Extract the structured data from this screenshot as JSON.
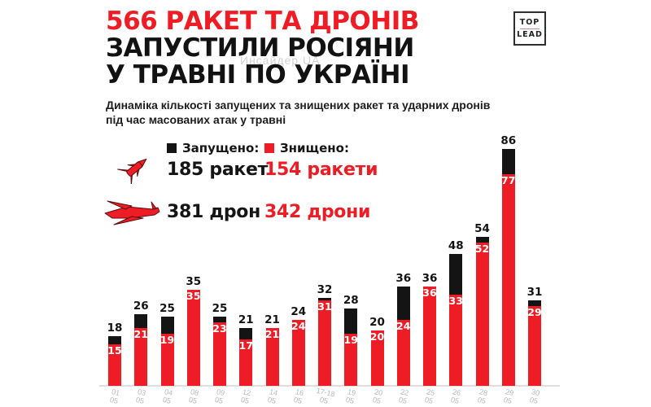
{
  "header": {
    "title_line1": "566 РАКЕТ ТА ДРОНІВ",
    "title_line2": "ЗАПУСТИЛИ РОСІЯНИ",
    "title_line3": "У ТРАВНІ ПО УКРАЇНІ",
    "subtitle_line1": "Динаміка кількості запущених та знищених ракет та ударних дронів",
    "subtitle_line2": "під час масованих атак у травні",
    "watermark": "Инсайдер UA"
  },
  "logo": {
    "top": "TOP",
    "bottom": "LEAD"
  },
  "legend": {
    "launched_label": "Запущено:",
    "destroyed_label": "Знищено:",
    "rockets_launched": "185 ракет",
    "rockets_destroyed": "154 ракети",
    "drones_launched": "381 дрон",
    "drones_destroyed": "342 дрони",
    "rocket_icon": "rocket-icon",
    "drone_icon": "drone-icon"
  },
  "colors": {
    "red": "#ee1c24",
    "black": "#141414",
    "axis_gray": "#b8b8b8"
  },
  "chart_data": {
    "type": "bar",
    "stacked": true,
    "title": "566 ракет та дронів запустили росіяни у травні по Україні",
    "month_label": "05",
    "categories": [
      "01",
      "03",
      "04",
      "08",
      "09",
      "12",
      "14",
      "16",
      "17-18",
      "19",
      "20",
      "22",
      "25",
      "26",
      "28",
      "29",
      "30"
    ],
    "series": [
      {
        "name": "Запущено",
        "color": "#141414",
        "values": [
          18,
          26,
          25,
          35,
          25,
          21,
          21,
          24,
          32,
          28,
          20,
          36,
          36,
          48,
          54,
          86,
          31
        ]
      },
      {
        "name": "Знищено",
        "color": "#ee1c24",
        "values": [
          15,
          21,
          19,
          35,
          23,
          17,
          21,
          24,
          31,
          19,
          20,
          24,
          36,
          33,
          52,
          77,
          29
        ]
      }
    ],
    "ylim": [
      0,
      86
    ],
    "grid": false,
    "legend_position": "top-left"
  }
}
